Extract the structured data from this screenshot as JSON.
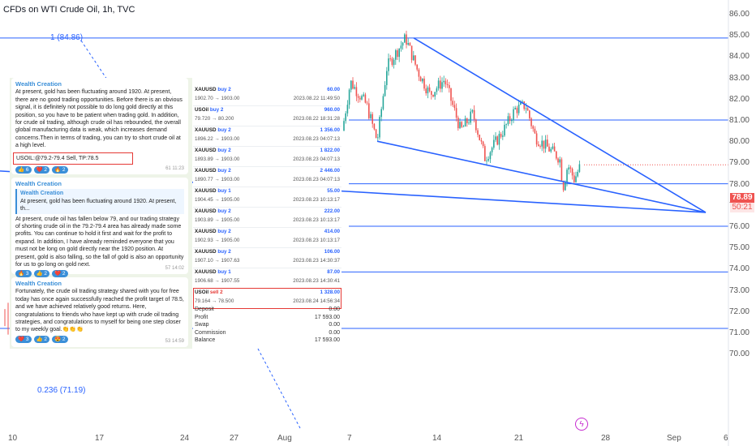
{
  "header": {
    "title": "CFDs on WTI Crude Oil, 1h, TVC"
  },
  "price_axis": {
    "ticks": [
      "86.00",
      "85.00",
      "84.00",
      "83.00",
      "82.00",
      "81.00",
      "80.00",
      "79.00",
      "78.00",
      "77.00",
      "76.00",
      "75.00",
      "74.00",
      "73.00",
      "72.00",
      "71.00",
      "70.00"
    ]
  },
  "time_axis": {
    "ticks": [
      "10",
      "17",
      "24",
      "27",
      "Aug",
      "7",
      "14",
      "21",
      "28",
      "Sep",
      "6"
    ]
  },
  "current_price": {
    "price": "78.89",
    "countdown": "50:21"
  },
  "fib_levels": {
    "top": "1 (84.86)",
    "bottom": "0.236 (71.19)"
  },
  "colors": {
    "line": "#2962ff",
    "candle_up": "#26a69a",
    "candle_down": "#ef5350",
    "price_tag": "#ef5350"
  },
  "telegram": {
    "messages": [
      {
        "sender": "Wealth Creation",
        "text": "At present, gold has been fluctuating around 1920. At present, there are no good trading opportunities. Before there is an obvious signal, it is definitely not possible to do long gold directly at this position, so you have to be patient when trading gold. In addition, for crude oil trading, although crude oil has rebounded, the overall global manufacturing data is weak, which increases demand concerns.Then in terms of trading, you can try to short crude oil at a high level.",
        "signal": "USOIL:@79.2-79.4 Sell, TP:78.5",
        "reactions": [
          "👍 6",
          "❤️ 2",
          "🔥 2"
        ],
        "meta": "61  11:23"
      },
      {
        "sender": "Wealth Creation",
        "quote_sender": "Wealth Creation",
        "quote_text": "At present, gold has been fluctuating around 1920. At present, th...",
        "text": "At present, crude oil has fallen below 79, and our trading strategy of shorting crude oil in the 79.2-79.4 area has already made some profits. You can continue to hold it first and wait for the profit to expand. In addition, I have already reminded everyone that you must not be long on gold directly near the 1920 position. At present, gold is also falling, so the fall of gold is also an opportunity for us to go long on gold next.",
        "reactions": [
          "🔥 3",
          "👍 2",
          "❤️ 2"
        ],
        "meta": "57  14:02"
      },
      {
        "sender": "Wealth Creation",
        "text": "Fortunately, the crude oil trading strategy shared with you for free today has once again successfully reached the profit target of 78.5, and we have achieved relatively good returns. Here, congratulations to friends who have kept up with crude oil trading strategies, and congratulations to myself for being one step closer to my weekly goal.👏👏👏",
        "reactions": [
          "❤️ 3",
          "👍 2",
          "😍 2"
        ],
        "meta": "53  14:59"
      }
    ]
  },
  "trades": [
    {
      "symbol": "XAUUSD",
      "side": "buy 2",
      "prices": "1902.70 → 1903.00",
      "pnl": "60.00",
      "date": "2023.08.22 11:49:50"
    },
    {
      "symbol": "USOil",
      "side": "buy 2",
      "prices": "79.720 → 80.200",
      "pnl": "960.00",
      "date": "2023.08.22 18:31:28"
    },
    {
      "symbol": "XAUUSD",
      "side": "buy 2",
      "prices": "1896.22 → 1903.00",
      "pnl": "1 356.00",
      "date": "2023.08.23 04:07:13"
    },
    {
      "symbol": "XAUUSD",
      "side": "buy 2",
      "prices": "1893.89 → 1903.00",
      "pnl": "1 822.00",
      "date": "2023.08.23 04:07:13"
    },
    {
      "symbol": "XAUUSD",
      "side": "buy 2",
      "prices": "1890.77 → 1903.00",
      "pnl": "2 446.00",
      "date": "2023.08.23 04:07:13"
    },
    {
      "symbol": "XAUUSD",
      "side": "buy 1",
      "prices": "1904.45 → 1905.00",
      "pnl": "55.00",
      "date": "2023.08.23 10:13:17"
    },
    {
      "symbol": "XAUUSD",
      "side": "buy 2",
      "prices": "1903.89 → 1905.00",
      "pnl": "222.00",
      "date": "2023.08.23 10:13:17"
    },
    {
      "symbol": "XAUUSD",
      "side": "buy 2",
      "prices": "1902.93 → 1905.00",
      "pnl": "414.00",
      "date": "2023.08.23 10:13:17"
    },
    {
      "symbol": "XAUUSD",
      "side": "buy 2",
      "prices": "1907.10 → 1907.63",
      "pnl": "106.00",
      "date": "2023.08.23 14:30:37"
    },
    {
      "symbol": "XAUUSD",
      "side": "buy 1",
      "prices": "1906.68 → 1907.55",
      "pnl": "87.00",
      "date": "2023.08.23 14:30:41"
    },
    {
      "symbol": "USOil",
      "side": "sell 2",
      "prices": "79.164 → 78.500",
      "pnl": "1 328.00",
      "date": "2023.08.24 14:56:34"
    }
  ],
  "summary": [
    {
      "label": "Deposit",
      "value": "0.00"
    },
    {
      "label": "Profit",
      "value": "17 593.00"
    },
    {
      "label": "Swap",
      "value": "0.00"
    },
    {
      "label": "Commission",
      "value": "0.00"
    },
    {
      "label": "Balance",
      "value": "17 593.00"
    }
  ]
}
